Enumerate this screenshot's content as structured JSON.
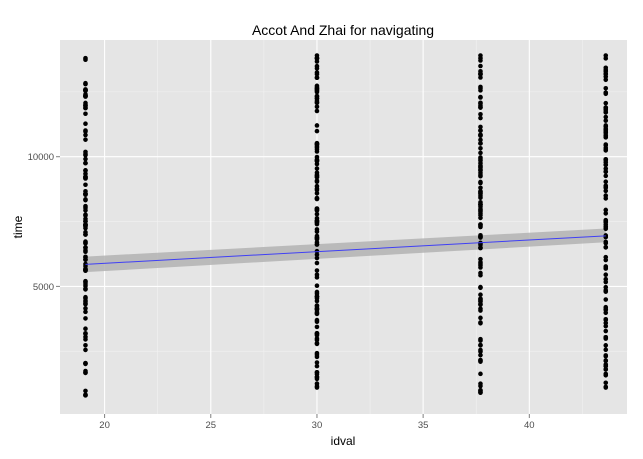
{
  "chart_data": {
    "type": "scatter",
    "title": "Accot And Zhai for navigating",
    "xlabel": "idval",
    "ylabel": "time",
    "xlim": [
      17.9,
      44.6
    ],
    "ylim": [
      80,
      14500
    ],
    "x_ticks": [
      20,
      25,
      30,
      35,
      40
    ],
    "x_tick_labels": [
      "20",
      "25",
      "30",
      "35",
      "40"
    ],
    "y_ticks": [
      5000,
      10000
    ],
    "y_tick_labels": [
      "5000",
      "10000"
    ],
    "grid": true,
    "legend": "none",
    "colors": {
      "panel": "#e5e5e5",
      "grid_major": "#ffffff",
      "points": "#000000",
      "fit_line": "#3f3ff5",
      "ribbon": "#b3b3b3"
    },
    "groups": [
      {
        "x": 19.1,
        "y_min": 800,
        "y_max": 13800,
        "n": 115
      },
      {
        "x": 30.0,
        "y_min": 1100,
        "y_max": 13900,
        "n": 130
      },
      {
        "x": 37.7,
        "y_min": 900,
        "y_max": 13900,
        "n": 115
      },
      {
        "x": 43.6,
        "y_min": 1100,
        "y_max": 13900,
        "n": 115
      }
    ],
    "fit": {
      "method": "linear",
      "x": [
        19.1,
        43.6
      ],
      "y": [
        5850,
        6950
      ],
      "ci_lower": [
        5550,
        6700
      ],
      "ci_upper": [
        6150,
        7230
      ]
    }
  }
}
